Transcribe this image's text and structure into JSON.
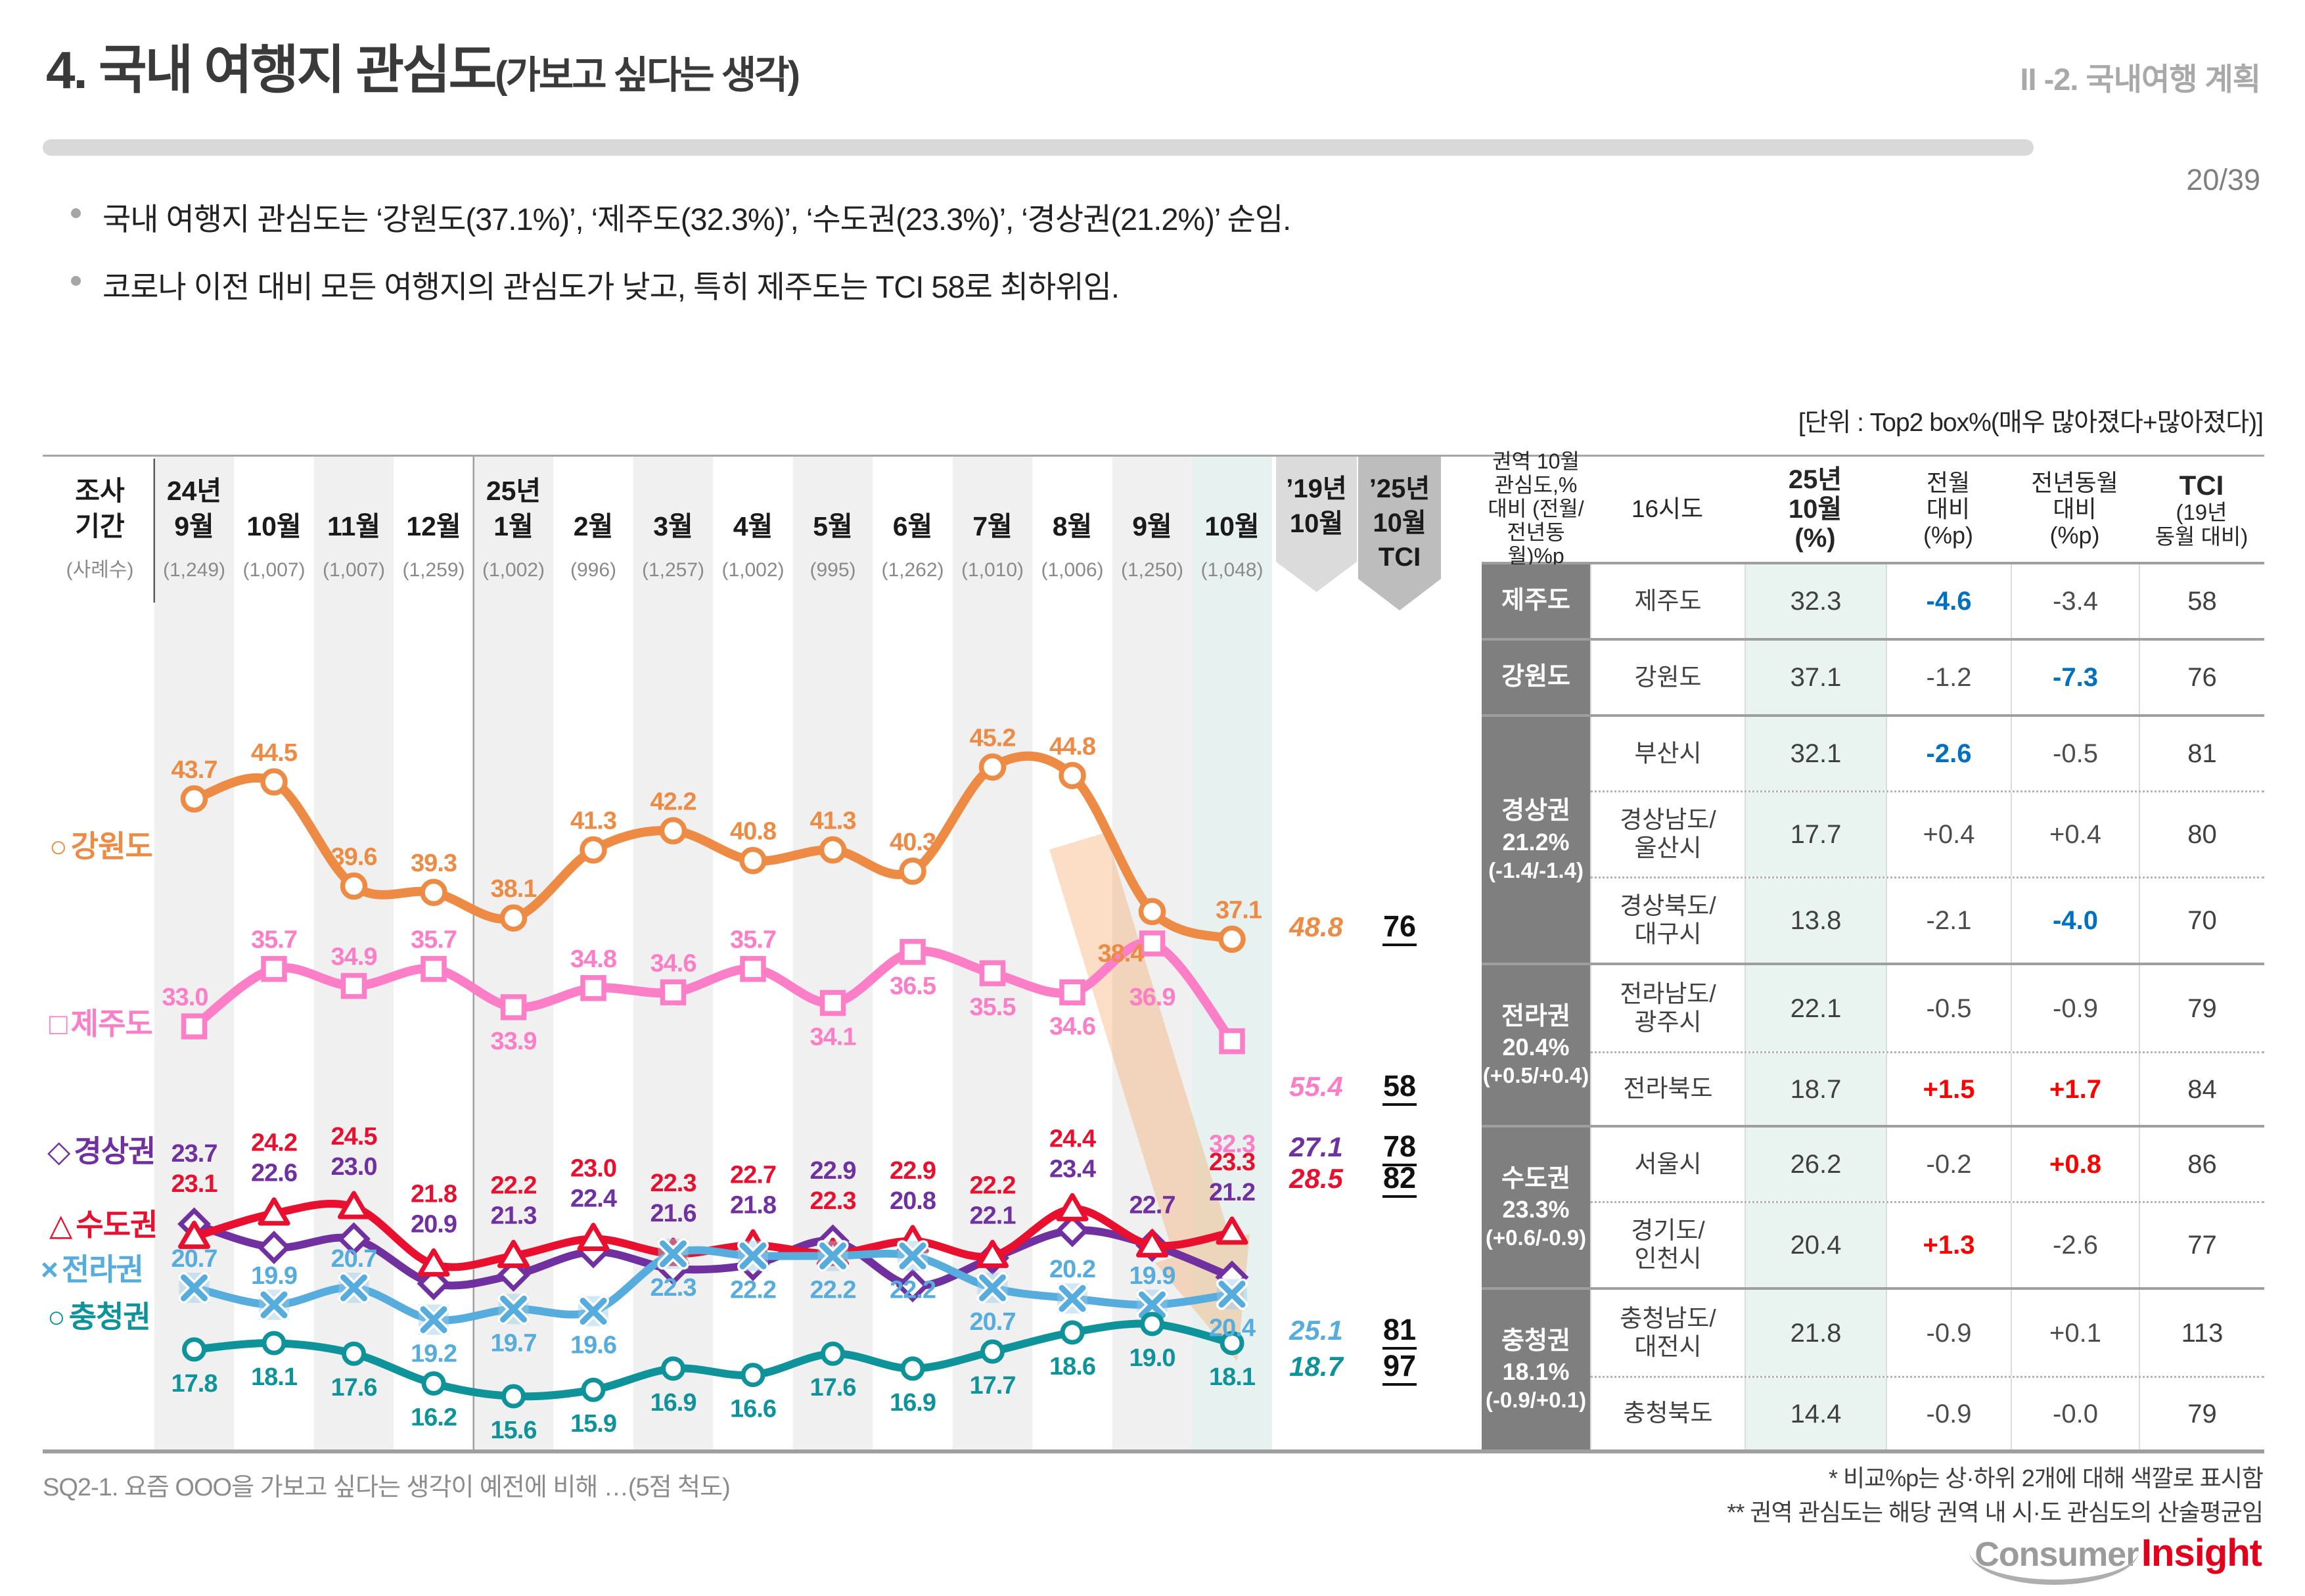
{
  "header": {
    "title_main": "4. 국내 여행지 관심도",
    "title_paren": "(가보고 싶다는 생각)",
    "section": "II -2. 국내여행 계획",
    "page": "20/39"
  },
  "bullets": [
    "국내 여행지 관심도는 ‘강원도(37.1%)’, ‘제주도(32.3%)’, ‘수도권(23.3%)’, ‘경상권(21.2%)’ 순임.",
    "코로나 이전 대비 모든 여행지의 관심도가 낮고, 특히 제주도는 TCI 58로 최하위임."
  ],
  "unit_note": "[단위 : Top2 box%(매우 많아졌다+많아졌다)]",
  "chart_data": {
    "type": "line",
    "x_header": {
      "row_label_lines": [
        "조사",
        "기간"
      ],
      "sample_label": "(사례수)"
    },
    "categories": [
      {
        "year": "24년",
        "month": "9월",
        "n": "(1,249)"
      },
      {
        "month": "10월",
        "n": "(1,007)"
      },
      {
        "month": "11월",
        "n": "(1,007)"
      },
      {
        "month": "12월",
        "n": "(1,259)"
      },
      {
        "year": "25년",
        "month": "1월",
        "n": "(1,002)"
      },
      {
        "month": "2월",
        "n": "(996)"
      },
      {
        "month": "3월",
        "n": "(1,257)"
      },
      {
        "month": "4월",
        "n": "(1,002)"
      },
      {
        "month": "5월",
        "n": "(995)"
      },
      {
        "month": "6월",
        "n": "(1,262)"
      },
      {
        "month": "7월",
        "n": "(1,010)"
      },
      {
        "month": "8월",
        "n": "(1,006)"
      },
      {
        "month": "9월",
        "n": "(1,250)"
      },
      {
        "month": "10월",
        "n": "(1,048)"
      }
    ],
    "extra_columns": [
      {
        "label_lines": [
          "’19년",
          "10월"
        ],
        "style": "light"
      },
      {
        "label_lines": [
          "’25년",
          "10월",
          "TCI"
        ],
        "style": "dark"
      }
    ],
    "ylim": [
      14,
      47
    ],
    "series": [
      {
        "name": "강원도",
        "legend_glyph": "○",
        "marker": "circle",
        "color": "#ED8B44",
        "values": [
          "43.7",
          "44.5",
          "39.6",
          "39.3",
          "38.1",
          "41.3",
          "42.2",
          "40.8",
          "41.3",
          "40.3",
          "45.2",
          "44.8",
          "38.4",
          "37.1"
        ],
        "label_side": [
          "u",
          "u",
          "u",
          "u",
          "u",
          "u",
          "u",
          "u",
          "u",
          "u",
          "u",
          "u",
          "d",
          "u"
        ],
        "label_overrides": {
          "12": {
            "dx": -48,
            "dy": 12
          },
          "13": {
            "dx": 10
          }
        },
        "ref_19_10": "48.8",
        "tci_25_10": "76"
      },
      {
        "name": "제주도",
        "legend_glyph": "□",
        "marker": "square",
        "color": "#FB7EC6",
        "values": [
          "33.0",
          "35.7",
          "34.9",
          "35.7",
          "33.9",
          "34.8",
          "34.6",
          "35.7",
          "34.1",
          "36.5",
          "35.5",
          "34.6",
          "36.9",
          "32.3"
        ],
        "label_side": [
          "u",
          "u",
          "u",
          "u",
          "d",
          "u",
          "u",
          "u",
          "d",
          "d",
          "d",
          "d",
          "d",
          "d"
        ],
        "label_overrides": {
          "0": {
            "dx": -14
          },
          "12": {
            "dy": 30
          },
          "13": {
            "dy": 105
          }
        },
        "ref_19_10": "55.4",
        "tci_25_10": "58"
      },
      {
        "name": "경상권",
        "legend_glyph": "◇",
        "marker": "diamond",
        "color": "#7030A0",
        "values": [
          "23.7",
          "22.6",
          "23.0",
          "20.9",
          "21.3",
          "22.4",
          "21.6",
          "21.8",
          "22.9",
          "20.8",
          "22.1",
          "23.4",
          "22.7",
          "21.2"
        ],
        "paired": true,
        "ref_19_10": "27.1",
        "tci_25_10": "78"
      },
      {
        "name": "수도권",
        "legend_glyph": "△",
        "marker": "triangle",
        "color": "#E8102E",
        "values": [
          "23.1",
          "24.2",
          "24.5",
          "21.8",
          "22.2",
          "23.0",
          "22.3",
          "22.7",
          "22.3",
          "22.9",
          "22.2",
          "24.4",
          "22.7",
          "23.3"
        ],
        "paired": true,
        "label_skip": [
          12
        ],
        "ref_19_10": "28.5",
        "tci_25_10": "82"
      },
      {
        "name": "전라권",
        "legend_glyph": "×",
        "marker": "x",
        "color": "#56ACDC",
        "values": [
          "20.7",
          "19.9",
          "20.7",
          "19.2",
          "19.7",
          "19.6",
          "22.3",
          "22.2",
          "22.2",
          "22.2",
          "20.7",
          "20.2",
          "19.9",
          "20.4"
        ],
        "label_side": [
          "u",
          "u",
          "u",
          "d",
          "d",
          "d",
          "d",
          "d",
          "d",
          "d",
          "d",
          "u",
          "u",
          "d"
        ],
        "ref_19_10": "25.1",
        "tci_25_10": "81"
      },
      {
        "name": "충청권",
        "legend_glyph": "○",
        "marker": "circle",
        "color": "#0E939A",
        "values": [
          "17.8",
          "18.1",
          "17.6",
          "16.2",
          "15.6",
          "15.9",
          "16.9",
          "16.6",
          "17.6",
          "16.9",
          "17.7",
          "18.6",
          "19.0",
          "18.1"
        ],
        "label_side": [
          "d",
          "d",
          "d",
          "d",
          "d",
          "d",
          "d",
          "d",
          "d",
          "d",
          "d",
          "d",
          "d",
          "d"
        ],
        "ref_19_10": "18.7",
        "tci_25_10": "97"
      }
    ]
  },
  "table": {
    "col_headers": [
      {
        "lines": [
          "권역 10월",
          "관심도,%",
          "대비 (전월/",
          "전년동월)%p"
        ],
        "size": 32
      },
      {
        "lines": [
          "16시도"
        ],
        "size": 37
      },
      {
        "lines": [
          "25년",
          "10월",
          "(%)"
        ],
        "size": 40,
        "bold": true
      },
      {
        "lines": [
          "전월",
          "대비",
          "(%p)"
        ],
        "size": 36
      },
      {
        "lines": [
          "전년동월",
          "대비",
          "(%p)"
        ],
        "size": 36
      },
      {
        "lines": [
          "TCI",
          "(19년",
          "동월 대비)"
        ],
        "size": 33,
        "first_bold": true
      }
    ],
    "groups": [
      {
        "region_lines": [
          "제주도"
        ],
        "rows": [
          {
            "city": [
              "제주도"
            ],
            "pct": "32.3",
            "mom": "-4.6",
            "mom_style": "blue",
            "yoy": "-3.4",
            "yoy_style": "",
            "tci": "58"
          }
        ]
      },
      {
        "region_lines": [
          "강원도"
        ],
        "rows": [
          {
            "city": [
              "강원도"
            ],
            "pct": "37.1",
            "mom": "-1.2",
            "mom_style": "",
            "yoy": "-7.3",
            "yoy_style": "blue",
            "tci": "76"
          }
        ]
      },
      {
        "region_lines": [
          "경상권",
          "21.2%",
          "(-1.4/-1.4)"
        ],
        "rows": [
          {
            "city": [
              "부산시"
            ],
            "pct": "32.1",
            "mom": "-2.6",
            "mom_style": "blue",
            "yoy": "-0.5",
            "yoy_style": "",
            "tci": "81"
          },
          {
            "city": [
              "경상남도/",
              "울산시"
            ],
            "pct": "17.7",
            "mom": "+0.4",
            "mom_style": "",
            "yoy": "+0.4",
            "yoy_style": "",
            "tci": "80"
          },
          {
            "city": [
              "경상북도/",
              "대구시"
            ],
            "pct": "13.8",
            "mom": "-2.1",
            "mom_style": "",
            "yoy": "-4.0",
            "yoy_style": "blue",
            "tci": "70"
          }
        ]
      },
      {
        "region_lines": [
          "전라권",
          "20.4%",
          "(+0.5/+0.4)"
        ],
        "rows": [
          {
            "city": [
              "전라남도/",
              "광주시"
            ],
            "pct": "22.1",
            "mom": "-0.5",
            "mom_style": "",
            "yoy": "-0.9",
            "yoy_style": "",
            "tci": "79"
          },
          {
            "city": [
              "전라북도"
            ],
            "pct": "18.7",
            "mom": "+1.5",
            "mom_style": "red",
            "yoy": "+1.7",
            "yoy_style": "red",
            "tci": "84"
          }
        ]
      },
      {
        "region_lines": [
          "수도권",
          "23.3%",
          "(+0.6/-0.9)"
        ],
        "rows": [
          {
            "city": [
              "서울시"
            ],
            "pct": "26.2",
            "mom": "-0.2",
            "mom_style": "",
            "yoy": "+0.8",
            "yoy_style": "red",
            "tci": "86"
          },
          {
            "city": [
              "경기도/",
              "인천시"
            ],
            "pct": "20.4",
            "mom": "+1.3",
            "mom_style": "red",
            "yoy": "-2.6",
            "yoy_style": "",
            "tci": "77"
          }
        ]
      },
      {
        "region_lines": [
          "충청권",
          "18.1%",
          "(-0.9/+0.1)"
        ],
        "rows": [
          {
            "city": [
              "충청남도/",
              "대전시"
            ],
            "pct": "21.8",
            "mom": "-0.9",
            "mom_style": "",
            "yoy": "+0.1",
            "yoy_style": "",
            "tci": "113"
          },
          {
            "city": [
              "충청북도"
            ],
            "pct": "14.4",
            "mom": "-0.9",
            "mom_style": "",
            "yoy": "-0.0",
            "yoy_style": "",
            "tci": "79"
          }
        ]
      }
    ]
  },
  "footer": {
    "question": "SQ2-1. 요즘 OOO을 가보고 싶다는 생각이 예전에 비해 …(5점 척도)",
    "notes": [
      "* 비교%p는 상·하위 2개에 대해 색깔로 표시함",
      "** 권역 관심도는 해당 권역 내 시·도 관심도의 산술평균임"
    ],
    "logo": {
      "part1": "Consumer",
      "part2": "Insight"
    }
  },
  "colors": {
    "stripe_gray": "#F0F0F0",
    "stripe_mint": "#E7F2F0",
    "arrow_light": "#DBDBDB",
    "arrow_dark": "#BDBDBD",
    "table_region_bg": "#7F7F7F",
    "table_pct_bg": "#E9F4F1",
    "negative_highlight": "#0070C0",
    "positive_highlight": "#FF0000",
    "fade_arrow": "rgba(242,153,74,0.32)"
  }
}
